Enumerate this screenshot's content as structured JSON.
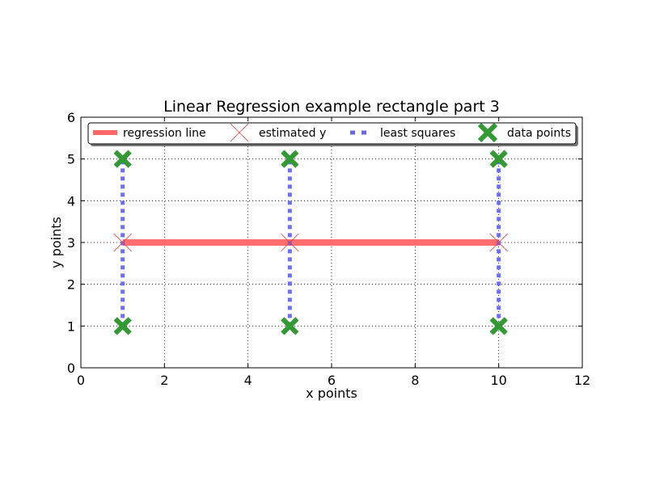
{
  "chart_data": {
    "type": "line",
    "title": "Linear Regression example rectangle part 3",
    "xlabel": "x points",
    "ylabel": "y points",
    "xlim": [
      0,
      12
    ],
    "ylim": [
      0,
      6
    ],
    "xticks": [
      "0",
      "2",
      "4",
      "6",
      "8",
      "10",
      "12"
    ],
    "yticks": [
      "0",
      "1",
      "2",
      "3",
      "4",
      "5",
      "6"
    ],
    "grid": true,
    "legend_position": "top",
    "series": [
      {
        "name": "regression line",
        "kind": "line",
        "color": "#ff6666",
        "x": [
          1,
          10
        ],
        "y": [
          3,
          3
        ]
      },
      {
        "name": "estimated y",
        "kind": "marker-x",
        "color": "#ff3333",
        "x": [
          1,
          5,
          10
        ],
        "y": [
          3,
          3,
          3
        ]
      },
      {
        "name": "least squares",
        "kind": "dashed-segments",
        "color": "#6666ee",
        "segments": [
          [
            1,
            1,
            1,
            5
          ],
          [
            5,
            1,
            5,
            5
          ],
          [
            10,
            1,
            10,
            5
          ]
        ]
      },
      {
        "name": "data points",
        "kind": "marker-X",
        "color": "#339933",
        "x": [
          1,
          1,
          5,
          5,
          10,
          10
        ],
        "y": [
          5,
          1,
          5,
          1,
          5,
          1
        ]
      }
    ]
  }
}
